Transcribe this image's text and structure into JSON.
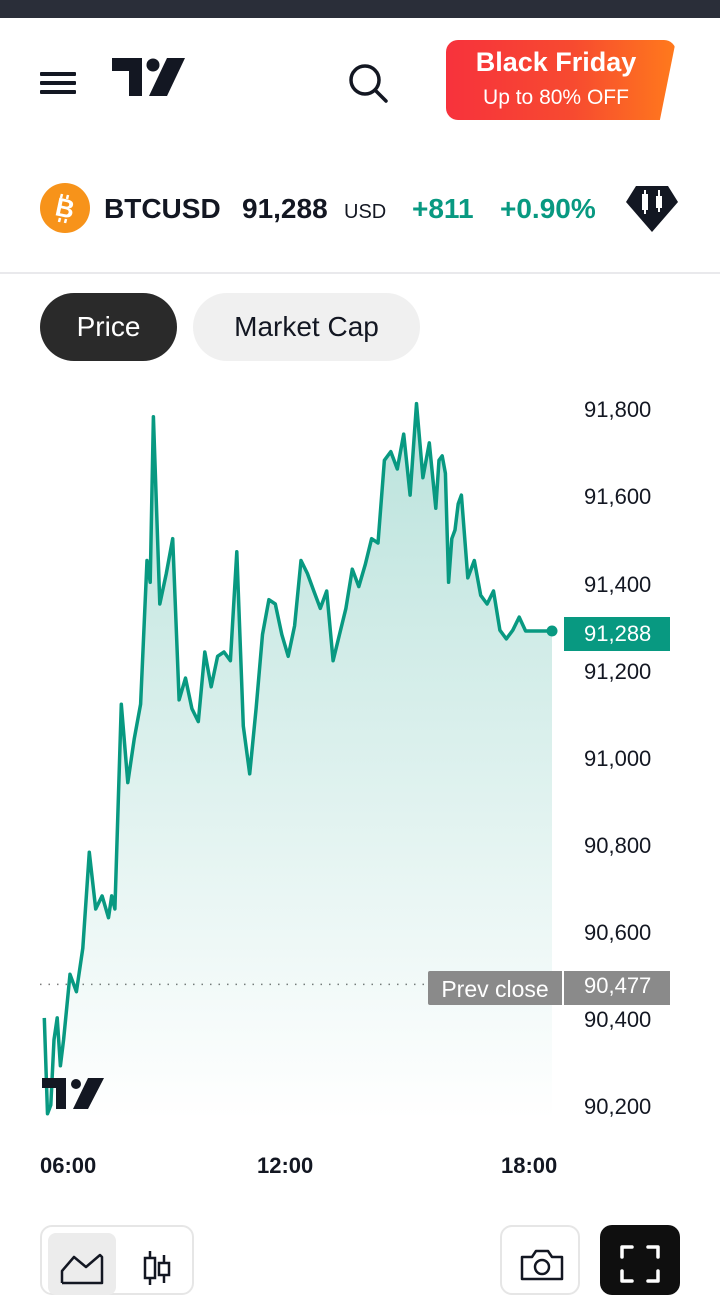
{
  "promo": {
    "title": "Black Friday",
    "subtitle": "Up to 80% OFF"
  },
  "symbol": {
    "ticker": "BTCUSD",
    "price": "91,288",
    "currency": "USD",
    "change": "+811",
    "change_pct": "+0.90%",
    "coin_icon": "bitcoin-icon"
  },
  "tabs": [
    {
      "label": "Price",
      "active": true
    },
    {
      "label": "Market Cap",
      "active": false
    }
  ],
  "colors": {
    "up": "#089981",
    "promo_start": "#f7323c",
    "promo_end": "#ff7a1c",
    "coin": "#f7931a",
    "prev_close_tag": "#8a8a8a"
  },
  "chart": {
    "last_price_label": "91,288",
    "prev_close_label": "Prev close",
    "prev_close_value": "90,477"
  },
  "chart_data": {
    "type": "area",
    "title": "",
    "xlabel": "",
    "ylabel": "",
    "x_ticks": [
      "06:00",
      "12:00",
      "18:00"
    ],
    "y_ticks": [
      91800,
      91600,
      91400,
      91200,
      91000,
      90800,
      90600,
      90400,
      90200
    ],
    "y_tick_labels": [
      "91,800",
      "91,600",
      "91,400",
      "91,200",
      "91,000",
      "90,800",
      "90,600",
      "90,400",
      "90,200"
    ],
    "ylim": [
      90150,
      91850
    ],
    "xlim": [
      "05:20",
      "18:40"
    ],
    "prev_close": 90477,
    "last": 91288,
    "grid": false,
    "series": [
      {
        "x": [
          "05:20",
          "05:25",
          "05:30",
          "05:35",
          "05:40",
          "05:45",
          "05:50",
          "06:00",
          "06:10",
          "06:20",
          "06:30",
          "06:40",
          "06:50",
          "07:00",
          "07:05",
          "07:10",
          "07:20",
          "07:30",
          "07:40",
          "07:50",
          "08:00",
          "08:05",
          "08:10",
          "08:20",
          "08:30",
          "08:40",
          "08:50",
          "09:00",
          "09:10",
          "09:20",
          "09:30",
          "09:40",
          "09:50",
          "10:00",
          "10:10",
          "10:20",
          "10:30",
          "10:40",
          "10:50",
          "11:00",
          "11:10",
          "11:20",
          "11:30",
          "11:40",
          "11:50",
          "12:00",
          "12:10",
          "12:20",
          "12:30",
          "12:40",
          "12:50",
          "13:00",
          "13:10",
          "13:20",
          "13:30",
          "13:40",
          "13:50",
          "14:00",
          "14:10",
          "14:20",
          "14:30",
          "14:40",
          "14:50",
          "15:00",
          "15:10",
          "15:20",
          "15:30",
          "15:35",
          "15:40",
          "15:45",
          "15:50",
          "15:55",
          "16:00",
          "16:05",
          "16:10",
          "16:20",
          "16:30",
          "16:40",
          "16:50",
          "17:00",
          "17:10",
          "17:20",
          "17:30",
          "17:40",
          "17:50",
          "18:00",
          "18:10",
          "18:20",
          "18:30",
          "18:35"
        ],
        "y": [
          90400,
          90180,
          90200,
          90350,
          90400,
          90290,
          90350,
          90500,
          90460,
          90560,
          90780,
          90650,
          90680,
          90630,
          90680,
          90650,
          91120,
          90940,
          91040,
          91120,
          91450,
          91400,
          91780,
          91350,
          91420,
          91500,
          91130,
          91180,
          91110,
          91080,
          91240,
          91160,
          91230,
          91240,
          91220,
          91470,
          91070,
          90960,
          91110,
          91280,
          91360,
          91350,
          91280,
          91230,
          91300,
          91450,
          91420,
          91380,
          91340,
          91380,
          91220,
          91280,
          91340,
          91430,
          91390,
          91440,
          91500,
          91490,
          91680,
          91700,
          91660,
          91740,
          91600,
          91810,
          91640,
          91720,
          91570,
          91680,
          91690,
          91650,
          91400,
          91500,
          91520,
          91580,
          91600,
          91410,
          91450,
          91370,
          91350,
          91380,
          91290,
          91270,
          91290,
          91320,
          91288,
          91288,
          91288,
          91288,
          91288,
          91288
        ]
      }
    ]
  }
}
